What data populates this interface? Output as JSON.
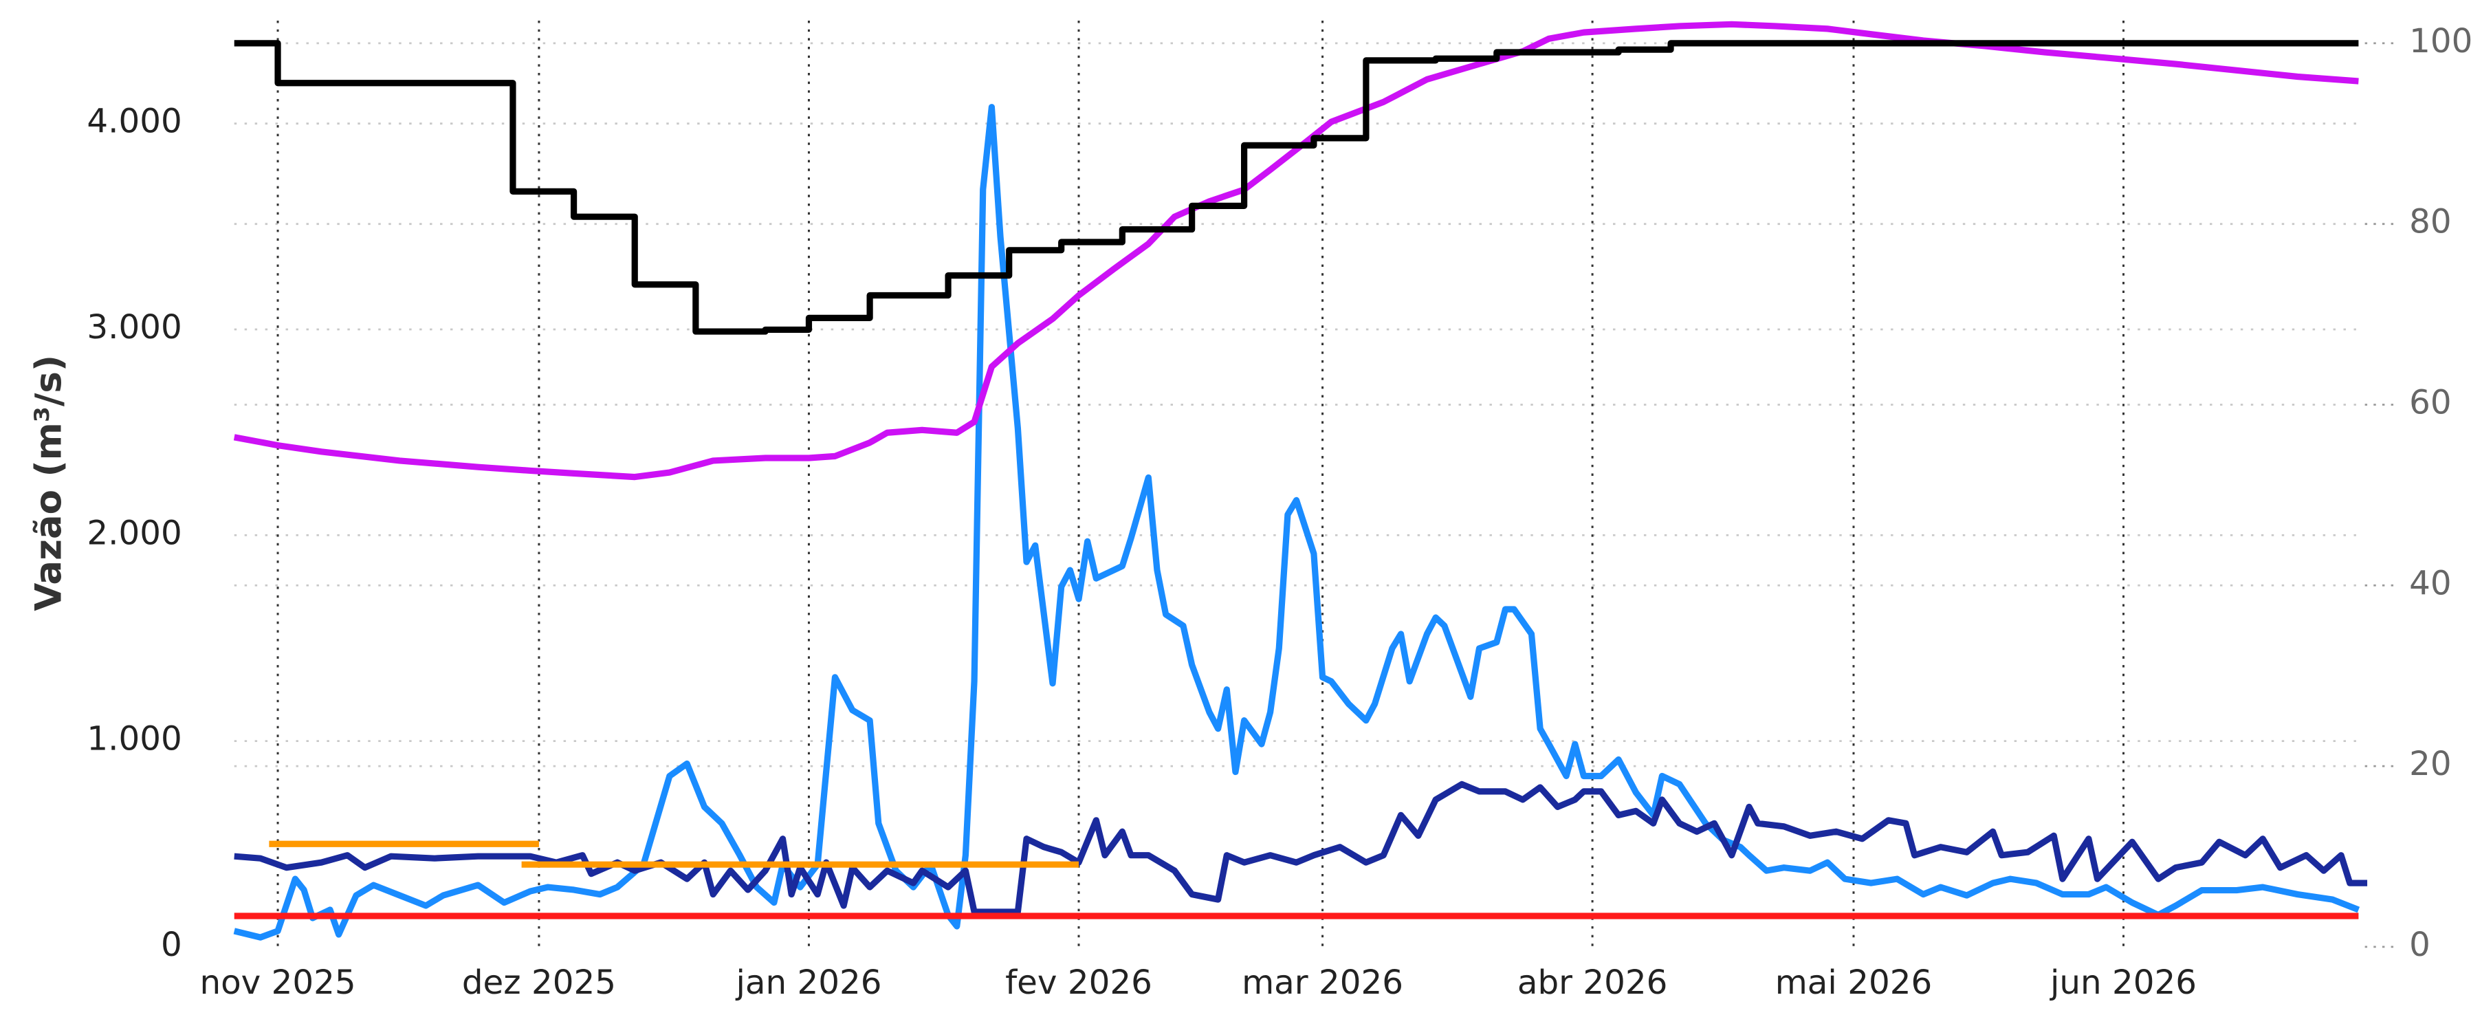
{
  "chart_data": {
    "type": "line",
    "ylabel": "Vazão (m³/s)",
    "xlim": [
      "2025-10-27",
      "2026-06-28"
    ],
    "xticks": [
      {
        "value": "2025-11-01",
        "label": "nov 2025"
      },
      {
        "value": "2025-12-01",
        "label": "dez 2025"
      },
      {
        "value": "2026-01-01",
        "label": "jan 2026"
      },
      {
        "value": "2026-02-01",
        "label": "fev 2026"
      },
      {
        "value": "2026-03-01",
        "label": "mar 2026"
      },
      {
        "value": "2026-04-01",
        "label": "abr 2026"
      },
      {
        "value": "2026-05-01",
        "label": "mai 2026"
      },
      {
        "value": "2026-06-01",
        "label": "jun 2026"
      }
    ],
    "ylim": [
      0,
      4500
    ],
    "yticks": [
      0,
      {
        "value": 1000,
        "label": "1.000"
      },
      {
        "value": 2000,
        "label": "2.000"
      },
      {
        "value": 3000,
        "label": "3.000"
      },
      {
        "value": 4000,
        "label": "4.000"
      }
    ],
    "y2lim": [
      0,
      102.5
    ],
    "y2ticks": [
      0,
      20,
      40,
      60,
      80,
      100
    ],
    "grid": true,
    "series": [
      {
        "color": "#1a8cff",
        "x": [
          "2025-10-27",
          "2025-10-30",
          "2025-11-01",
          "2025-11-03",
          "2025-11-04",
          "2025-11-05",
          "2025-11-07",
          "2025-11-08",
          "2025-11-10",
          "2025-11-12",
          "2025-11-15",
          "2025-11-18",
          "2025-11-20",
          "2025-11-24",
          "2025-11-27",
          "2025-11-30",
          "2025-12-02",
          "2025-12-05",
          "2025-12-08",
          "2025-12-10",
          "2025-12-13",
          "2025-12-16",
          "2025-12-18",
          "2025-12-20",
          "2025-12-22",
          "2025-12-24",
          "2025-12-26",
          "2025-12-28",
          "2025-12-29",
          "2025-12-31",
          "2026-01-02",
          "2026-01-04",
          "2026-01-06",
          "2026-01-08",
          "2026-01-09",
          "2026-01-11",
          "2026-01-13",
          "2026-01-15",
          "2026-01-17",
          "2026-01-18",
          "2026-01-19",
          "2026-01-20",
          "2026-01-21",
          "2026-01-22",
          "2026-01-23",
          "2026-01-25",
          "2026-01-26",
          "2026-01-27",
          "2026-01-29",
          "2026-01-30",
          "2026-01-31",
          "2026-02-01",
          "2026-02-02",
          "2026-02-03",
          "2026-02-06",
          "2026-02-07",
          "2026-02-09",
          "2026-02-10",
          "2026-02-11",
          "2026-02-13",
          "2026-02-14",
          "2026-02-16",
          "2026-02-17",
          "2026-02-18",
          "2026-02-19",
          "2026-02-20",
          "2026-02-22",
          "2026-02-23",
          "2026-02-24",
          "2026-02-25",
          "2026-02-26",
          "2026-02-28",
          "2026-03-01",
          "2026-03-02",
          "2026-03-04",
          "2026-03-06",
          "2026-03-07",
          "2026-03-09",
          "2026-03-10",
          "2026-03-11",
          "2026-03-13",
          "2026-03-14",
          "2026-03-15",
          "2026-03-17",
          "2026-03-18",
          "2026-03-19",
          "2026-03-21",
          "2026-03-22",
          "2026-03-23",
          "2026-03-25",
          "2026-03-26",
          "2026-03-27",
          "2026-03-29",
          "2026-03-30",
          "2026-03-31",
          "2026-04-02",
          "2026-04-04",
          "2026-04-06",
          "2026-04-08",
          "2026-04-09",
          "2026-04-11",
          "2026-04-14",
          "2026-04-16",
          "2026-04-18",
          "2026-04-19",
          "2026-04-21",
          "2026-04-23",
          "2026-04-26",
          "2026-04-28",
          "2026-04-30",
          "2026-05-03",
          "2026-05-06",
          "2026-05-09",
          "2026-05-11",
          "2026-05-14",
          "2026-05-17",
          "2026-05-19",
          "2026-05-22",
          "2026-05-25",
          "2026-05-28",
          "2026-05-30",
          "2026-06-02",
          "2026-06-05",
          "2026-06-07",
          "2026-06-10",
          "2026-06-14",
          "2026-06-17",
          "2026-06-21",
          "2026-06-25",
          "2026-06-28"
        ],
        "values": [
          77,
          46,
          77,
          330,
          277,
          140,
          180,
          60,
          250,
          300,
          250,
          200,
          250,
          300,
          215,
          270,
          290,
          277,
          255,
          290,
          400,
          830,
          890,
          680,
          600,
          450,
          290,
          215,
          400,
          290,
          400,
          1310,
          1150,
          1100,
          600,
          370,
          290,
          400,
          154,
          100,
          445,
          1290,
          3680,
          4080,
          3450,
          2520,
          1870,
          1950,
          1280,
          1750,
          1830,
          1690,
          1970,
          1790,
          1850,
          1985,
          2280,
          1830,
          1615,
          1560,
          1370,
          1140,
          1060,
          1250,
          850,
          1100,
          985,
          1140,
          1450,
          2100,
          2170,
          1910,
          1310,
          1290,
          1180,
          1100,
          1180,
          1450,
          1520,
          1290,
          1520,
          1600,
          1560,
          1330,
          1215,
          1450,
          1480,
          1640,
          1640,
          1520,
          1060,
          985,
          830,
          985,
          830,
          830,
          910,
          750,
          640,
          830,
          790,
          600,
          520,
          485,
          445,
          370,
          385,
          370,
          410,
          330,
          310,
          330,
          255,
          290,
          250,
          310,
          330,
          310,
          255,
          255,
          290,
          215,
          155,
          200,
          275,
          275,
          290,
          255,
          230,
          180
        ]
      },
      {
        "color": "#1a2a9c",
        "x": [
          "2025-10-27",
          "2025-10-30",
          "2025-11-02",
          "2025-11-06",
          "2025-11-09",
          "2025-11-11",
          "2025-11-14",
          "2025-11-19",
          "2025-11-24",
          "2025-11-30",
          "2025-12-03",
          "2025-12-06",
          "2025-12-07",
          "2025-12-10",
          "2025-12-12",
          "2025-12-15",
          "2025-12-18",
          "2025-12-20",
          "2025-12-21",
          "2025-12-23",
          "2025-12-25",
          "2025-12-27",
          "2025-12-29",
          "2025-12-30",
          "2025-12-31",
          "2026-01-02",
          "2026-01-03",
          "2026-01-05",
          "2026-01-06",
          "2026-01-08",
          "2026-01-10",
          "2026-01-13",
          "2026-01-14",
          "2026-01-17",
          "2026-01-19",
          "2026-01-20",
          "2026-01-25",
          "2026-01-26",
          "2026-01-28",
          "2026-01-30",
          "2026-02-01",
          "2026-02-03",
          "2026-02-04",
          "2026-02-06",
          "2026-02-07",
          "2026-02-09",
          "2026-02-12",
          "2026-02-14",
          "2026-02-17",
          "2026-02-18",
          "2026-02-20",
          "2026-02-23",
          "2026-02-26",
          "2026-02-28",
          "2026-03-03",
          "2026-03-06",
          "2026-03-08",
          "2026-03-10",
          "2026-03-12",
          "2026-03-14",
          "2026-03-15",
          "2026-03-17",
          "2026-03-19",
          "2026-03-22",
          "2026-03-24",
          "2026-03-26",
          "2026-03-28",
          "2026-03-30",
          "2026-03-31",
          "2026-04-02",
          "2026-04-04",
          "2026-04-06",
          "2026-04-08",
          "2026-04-09",
          "2026-04-11",
          "2026-04-13",
          "2026-04-15",
          "2026-04-17",
          "2026-04-19",
          "2026-04-20",
          "2026-04-23",
          "2026-04-26",
          "2026-04-29",
          "2026-05-02",
          "2026-05-05",
          "2026-05-07",
          "2026-05-08",
          "2026-05-11",
          "2026-05-14",
          "2026-05-17",
          "2026-05-18",
          "2026-05-21",
          "2026-05-24",
          "2026-05-25",
          "2026-05-28",
          "2026-05-29",
          "2026-06-02",
          "2026-06-05",
          "2026-06-07",
          "2026-06-10",
          "2026-06-12",
          "2026-06-15",
          "2026-06-17",
          "2026-06-19",
          "2026-06-22",
          "2026-06-24",
          "2026-06-26",
          "2026-06-27",
          "2026-06-29"
        ],
        "values": [
          440,
          430,
          385,
          410,
          445,
          385,
          440,
          430,
          440,
          440,
          410,
          445,
          355,
          410,
          370,
          410,
          330,
          410,
          255,
          370,
          277,
          370,
          525,
          255,
          385,
          255,
          410,
          200,
          385,
          290,
          370,
          310,
          370,
          290,
          370,
          170,
          170,
          525,
          485,
          460,
          410,
          615,
          445,
          560,
          445,
          445,
          370,
          255,
          230,
          445,
          410,
          445,
          410,
          445,
          485,
          410,
          445,
          640,
          540,
          715,
          740,
          790,
          755,
          755,
          715,
          775,
          680,
          715,
          755,
          755,
          640,
          660,
          600,
          715,
          600,
          560,
          600,
          445,
          680,
          600,
          585,
          540,
          560,
          525,
          615,
          600,
          445,
          485,
          460,
          560,
          445,
          460,
          540,
          330,
          525,
          330,
          510,
          330,
          385,
          410,
          510,
          445,
          525,
          385,
          445,
          370,
          445,
          310,
          310
        ]
      },
      {
        "color": "#ff1a1a",
        "x": [
          "2025-10-27",
          "2026-06-28"
        ],
        "values": [
          150,
          150
        ]
      },
      {
        "color": "#ff9900",
        "x": [
          "2025-10-31",
          "2025-12-01"
        ],
        "values": [
          500,
          500
        ]
      },
      {
        "color": "#ff9900",
        "x": [
          "2025-11-29",
          "2026-02-01"
        ],
        "values": [
          400,
          400
        ]
      },
      {
        "color": "#cc11f5",
        "axis": "y2",
        "x": [
          "2025-10-27",
          "2025-11-01",
          "2025-11-06",
          "2025-11-15",
          "2025-11-24",
          "2025-11-30",
          "2025-12-05",
          "2025-12-12",
          "2025-12-16",
          "2025-12-21",
          "2025-12-27",
          "2026-01-01",
          "2026-01-04",
          "2026-01-08",
          "2026-01-10",
          "2026-01-14",
          "2026-01-18",
          "2026-01-20",
          "2026-01-22",
          "2026-01-25",
          "2026-01-29",
          "2026-02-01",
          "2026-02-05",
          "2026-02-09",
          "2026-02-12",
          "2026-02-16",
          "2026-02-20",
          "2026-02-23",
          "2026-02-27",
          "2026-03-02",
          "2026-03-08",
          "2026-03-13",
          "2026-03-19",
          "2026-03-24",
          "2026-03-27",
          "2026-03-31",
          "2026-04-06",
          "2026-04-11",
          "2026-04-17",
          "2026-04-22",
          "2026-04-28",
          "2026-05-03",
          "2026-05-09",
          "2026-05-16",
          "2026-05-23",
          "2026-05-30",
          "2026-06-07",
          "2026-06-14",
          "2026-06-21",
          "2026-06-28"
        ],
        "values": [
          56.4,
          55.5,
          54.8,
          53.8,
          53.1,
          52.7,
          52.4,
          52.0,
          52.5,
          53.8,
          54.1,
          54.1,
          54.3,
          55.8,
          56.9,
          57.2,
          56.9,
          58.1,
          64.2,
          66.8,
          69.5,
          72.1,
          75.0,
          77.8,
          80.8,
          82.5,
          83.8,
          86.0,
          89.0,
          91.3,
          93.5,
          96.0,
          97.7,
          99.1,
          100.5,
          101.2,
          101.6,
          101.9,
          102.1,
          101.9,
          101.6,
          101.0,
          100.3,
          99.7,
          99.0,
          98.4,
          97.7,
          97.0,
          96.3,
          95.8
        ]
      },
      {
        "color": "#000000",
        "axis": "y2",
        "drawstyle": "steps-post",
        "x": [
          "2025-10-27",
          "2025-11-01",
          "2025-11-28",
          "2025-12-05",
          "2025-12-12",
          "2025-12-19",
          "2025-12-27",
          "2026-01-01",
          "2026-01-08",
          "2026-01-17",
          "2026-01-24",
          "2026-01-30",
          "2026-02-06",
          "2026-02-14",
          "2026-02-20",
          "2026-02-28",
          "2026-03-06",
          "2026-03-14",
          "2026-03-21",
          "2026-04-04",
          "2026-04-10",
          "2026-06-28"
        ],
        "values": [
          100,
          95.6,
          83.6,
          80.8,
          73.3,
          68.1,
          68.3,
          69.6,
          72.1,
          74.3,
          77.1,
          78.0,
          79.4,
          82.0,
          88.7,
          89.5,
          98.1,
          98.3,
          99.0,
          99.3,
          100,
          100
        ]
      }
    ]
  }
}
